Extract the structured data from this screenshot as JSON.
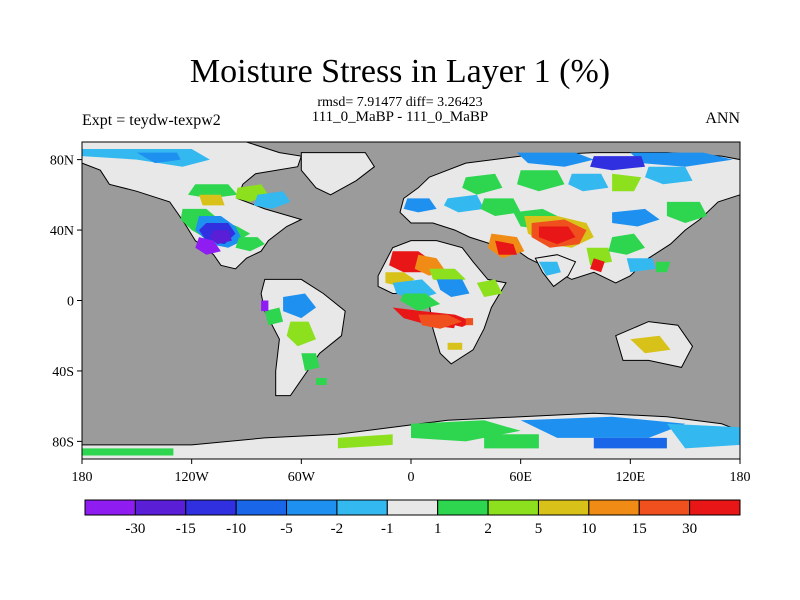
{
  "title": "Moisture Stress in Layer 1 (%)",
  "stats": "rmsd= 7.91477  diff= 3.26423",
  "subtitle": "111_0_MaBP - 111_0_MaBP",
  "left_label": "Expt = teydw-texpw2",
  "right_label": "ANN",
  "map": {
    "lat_ticks": [
      "80N",
      "40N",
      "0",
      "40S",
      "80S"
    ],
    "lon_ticks": [
      "180",
      "120W",
      "60W",
      "0",
      "60E",
      "120E",
      "180"
    ],
    "lon_range": [
      -180,
      180
    ],
    "lat_range": [
      -90,
      90
    ],
    "missing_color": "#9b9b9b",
    "coastline_color": "#000000"
  },
  "colorbar": {
    "colors": [
      "#8f1cf0",
      "#5a1ed6",
      "#3030e0",
      "#1a66e8",
      "#1e90f0",
      "#33b8f0",
      "#e8e8e8",
      "#2ed650",
      "#8ce01e",
      "#d8c21a",
      "#f08c16",
      "#f0501e",
      "#e81616"
    ],
    "labels": [
      "-30",
      "-15",
      "-10",
      "-5",
      "-2",
      "-1",
      "1",
      "2",
      "5",
      "10",
      "15",
      "30"
    ]
  },
  "colors": {
    "neutral": "#e8e8e8",
    "cyan": "#33b8f0",
    "light_blue": "#1e90f0",
    "blue": "#1a66e8",
    "dark_blue": "#3030e0",
    "purple": "#5a1ed6",
    "violet": "#8f1cf0",
    "green": "#2ed650",
    "lime": "#8ce01e",
    "yellow": "#d8c21a",
    "orange": "#f08c16",
    "red_orange": "#f0501e",
    "red": "#e81616"
  }
}
